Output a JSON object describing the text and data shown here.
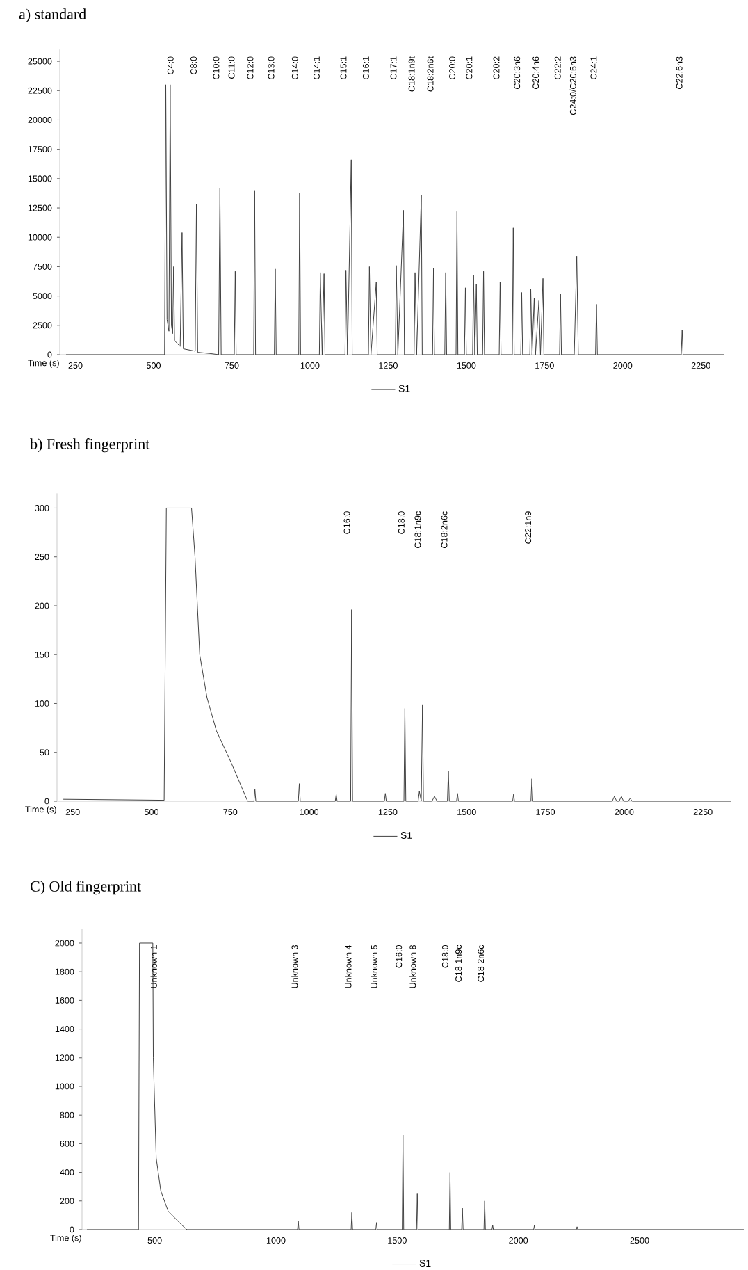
{
  "chart_data": [
    {
      "type": "line",
      "title": "a) standard",
      "xlabel": "Time (s)",
      "legend": "bottom",
      "x": [
        220,
        535,
        539,
        543,
        549,
        553,
        557,
        561,
        564,
        567,
        585,
        591,
        595,
        633,
        637,
        641,
        680,
        708,
        712,
        716,
        758,
        761,
        764,
        820,
        823,
        826,
        886,
        889,
        892,
        964,
        967,
        970,
        1030,
        1033,
        1039,
        1045,
        1048,
        1112,
        1115,
        1120,
        1132,
        1135,
        1187,
        1190,
        1195,
        1212,
        1215,
        1273,
        1276,
        1281,
        1299,
        1302,
        1333,
        1336,
        1341,
        1356,
        1359,
        1392,
        1395,
        1398,
        1431,
        1434,
        1437,
        1467,
        1470,
        1473,
        1494,
        1497,
        1500,
        1520,
        1523,
        1527,
        1532,
        1535,
        1552,
        1555,
        1558,
        1605,
        1608,
        1611,
        1647,
        1650,
        1653,
        1674,
        1677,
        1680,
        1703,
        1706,
        1710,
        1717,
        1721,
        1732,
        1737,
        1745,
        1748,
        1798,
        1801,
        1804,
        1845,
        1853,
        1858,
        1913,
        1916,
        1919,
        2187,
        2190,
        2193,
        2325
      ],
      "series": [
        {
          "name": "S1",
          "color": "#404040",
          "values": [
            0,
            0,
            23000,
            3000,
            2000,
            23000,
            2500,
            1800,
            7500,
            1200,
            700,
            10400,
            500,
            300,
            12800,
            200,
            100,
            0,
            14200,
            0,
            0,
            7100,
            0,
            0,
            14000,
            0,
            0,
            7300,
            0,
            0,
            13800,
            0,
            0,
            7000,
            0,
            6900,
            0,
            0,
            7200,
            0,
            16600,
            0,
            0,
            7500,
            0,
            6200,
            0,
            0,
            7600,
            0,
            12300,
            0,
            0,
            7000,
            0,
            13600,
            0,
            0,
            7400,
            0,
            0,
            7000,
            0,
            0,
            12200,
            0,
            0,
            5700,
            0,
            0,
            6800,
            0,
            6000,
            0,
            0,
            7100,
            0,
            0,
            6200,
            0,
            0,
            10800,
            0,
            0,
            5300,
            0,
            0,
            5600,
            0,
            4800,
            0,
            4600,
            0,
            6500,
            0,
            0,
            5200,
            0,
            0,
            8400,
            0,
            0,
            4300,
            0,
            0,
            2100,
            0,
            0
          ]
        }
      ],
      "xlim": [
        200,
        2325
      ],
      "ylim": [
        0,
        26000
      ],
      "xticks": [
        250,
        500,
        750,
        1000,
        1250,
        1500,
        1750,
        2000,
        2250
      ],
      "yticks": [
        0,
        2500,
        5000,
        7500,
        10000,
        12500,
        15000,
        17500,
        20000,
        22500,
        25000
      ],
      "annotations": [
        "C4:0",
        "C8:0",
        "C10:0",
        "C11:0",
        "C12:0",
        "C13:0",
        "C14:0",
        "C14:1",
        "C15:1",
        "C16:1",
        "C17:1",
        "C18:1n9t",
        "C18:2n6t",
        "C20:0",
        "C20:1",
        "C20:2",
        "C20:3n6",
        "C20:4n6",
        "C22:2",
        "C24:0/C20:5n3",
        "C24:1",
        "C22:6n3"
      ]
    },
    {
      "type": "line",
      "title": "b) Fresh fingerprint",
      "xlabel": "Time (s)",
      "legend": "bottom",
      "x": [
        220,
        540,
        547,
        627,
        638,
        653,
        676,
        706,
        752,
        805,
        825,
        828,
        831,
        966,
        969,
        972,
        1083,
        1086,
        1089,
        1132,
        1135,
        1138,
        1239,
        1242,
        1245,
        1301,
        1304,
        1307,
        1346,
        1350,
        1356,
        1360,
        1363,
        1390,
        1398,
        1406,
        1439,
        1442,
        1445,
        1468,
        1471,
        1474,
        1646,
        1649,
        1652,
        1704,
        1707,
        1710,
        1962,
        1969,
        1976,
        1984,
        1991,
        1998,
        2013,
        2019,
        2025,
        2340
      ],
      "series": [
        {
          "name": "S1",
          "color": "#404040",
          "values": [
            2,
            1,
            300,
            300,
            250,
            150,
            106,
            72,
            40,
            0,
            0,
            12,
            0,
            0,
            18,
            0,
            0,
            7,
            0,
            0,
            196,
            0,
            0,
            8,
            0,
            0,
            95,
            0,
            0,
            10,
            0,
            99,
            0,
            0,
            5,
            0,
            0,
            31,
            0,
            0,
            8,
            0,
            0,
            7,
            0,
            0,
            23,
            0,
            0,
            5,
            0,
            0,
            5,
            0,
            0,
            3,
            0,
            0
          ]
        }
      ],
      "xlim": [
        200,
        2340
      ],
      "ylim": [
        0,
        315
      ],
      "xticks": [
        250,
        500,
        750,
        1000,
        1250,
        1500,
        1750,
        2000,
        2250
      ],
      "yticks": [
        0,
        50,
        100,
        150,
        200,
        250,
        300
      ],
      "annotations": [
        "C16:0",
        "C18:0",
        "C18:1n9c",
        "C18:2n6c",
        "C22:1n9"
      ]
    },
    {
      "type": "line",
      "title": "C) Old fingerprint",
      "xlabel": "Time (s)",
      "legend": "bottom",
      "x": [
        220,
        433,
        437,
        492,
        494,
        506,
        525,
        555,
        613,
        633,
        1089,
        1092,
        1095,
        1310,
        1313,
        1316,
        1412,
        1415,
        1418,
        1521,
        1524,
        1527,
        1580,
        1583,
        1586,
        1715,
        1718,
        1721,
        1766,
        1769,
        1772,
        1858,
        1861,
        1864,
        1891,
        1894,
        1897,
        2063,
        2066,
        2069,
        2239,
        2242,
        2245,
        2930
      ],
      "series": [
        {
          "name": "S1",
          "color": "#404040",
          "values": [
            0,
            0,
            2000,
            2000,
            1200,
            500,
            270,
            130,
            30,
            0,
            0,
            60,
            0,
            0,
            120,
            0,
            0,
            50,
            0,
            0,
            660,
            0,
            0,
            250,
            0,
            0,
            400,
            0,
            0,
            150,
            0,
            0,
            200,
            0,
            0,
            30,
            0,
            0,
            30,
            0,
            0,
            20,
            0,
            0
          ]
        }
      ],
      "xlim": [
        200,
        2930
      ],
      "ylim": [
        0,
        2100
      ],
      "xticks": [
        500,
        1000,
        1500,
        2000,
        2500
      ],
      "yticks": [
        0,
        200,
        400,
        600,
        800,
        1000,
        1200,
        1400,
        1600,
        1800,
        2000
      ],
      "annotations": [
        "Unknown 1",
        "Unknown 3",
        "Unknown 4",
        "Unknown 5",
        "C16:0",
        "Unknown 8",
        "C18:0",
        "C18:1n9c",
        "C18:2n6c"
      ]
    }
  ]
}
